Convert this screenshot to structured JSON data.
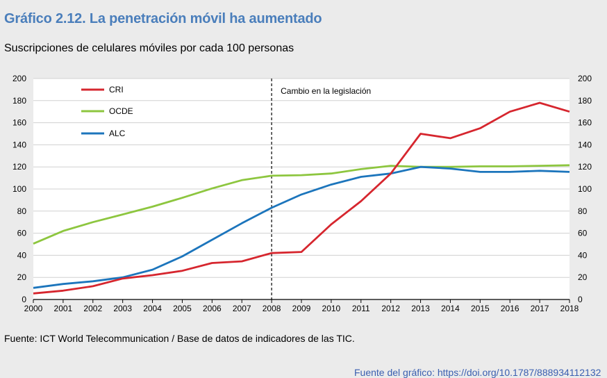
{
  "header": {
    "title": "Gráfico 2.12. La penetración móvil ha aumentado",
    "subtitle": "Suscripciones de celulares móviles por cada 100 personas"
  },
  "footer": {
    "source": "Fuente: ICT World Telecommunication / Base de datos de indicadores de las TIC.",
    "link_fragment": "Fuente del gráfico: https://doi.org/10.1787/888934112132"
  },
  "colors": {
    "title": "#4a7ebb",
    "cri": "#d6262e",
    "ocde": "#8dc63f",
    "alc": "#1c75bc",
    "background": "#ebebeb",
    "plot": "#ffffff",
    "grid": "#d0d0d0"
  },
  "chart_data": {
    "type": "line",
    "title": "Gráfico 2.12. La penetración móvil ha aumentado",
    "ylabel": "Suscripciones de celulares móviles por cada 100 personas",
    "xlabel": "",
    "x": [
      "2000",
      "2001",
      "2002",
      "2003",
      "2004",
      "2005",
      "2006",
      "2007",
      "2008",
      "2009",
      "2010",
      "2011",
      "2012",
      "2013",
      "2014",
      "2015",
      "2016",
      "2017",
      "2018"
    ],
    "ylim": [
      0,
      200
    ],
    "yticks": [
      0,
      20,
      40,
      60,
      80,
      100,
      120,
      140,
      160,
      180,
      200
    ],
    "grid": true,
    "legend_position": "top-left",
    "series": [
      {
        "name": "CRI",
        "color": "#d6262e",
        "values": [
          5.5,
          8,
          12,
          19,
          22,
          26,
          33,
          34.5,
          42,
          43,
          68,
          89,
          114,
          150,
          146,
          155,
          170,
          178,
          170
        ]
      },
      {
        "name": "OCDE",
        "color": "#8dc63f",
        "values": [
          50.5,
          62,
          70,
          77,
          84,
          92,
          100.5,
          108,
          112,
          112.5,
          114,
          118,
          121,
          120,
          120,
          120.5,
          120.5,
          121,
          121.5
        ]
      },
      {
        "name": "ALC",
        "color": "#1c75bc",
        "values": [
          10.5,
          14,
          16.5,
          20,
          27,
          39,
          54,
          69,
          83,
          95,
          104,
          111,
          114,
          120,
          118.5,
          115.5,
          115.5,
          116.5,
          115.5
        ]
      }
    ],
    "annotations": [
      {
        "text": "Cambio en la legislación",
        "x": "2008",
        "style": "dashed-vertical-line"
      }
    ]
  }
}
